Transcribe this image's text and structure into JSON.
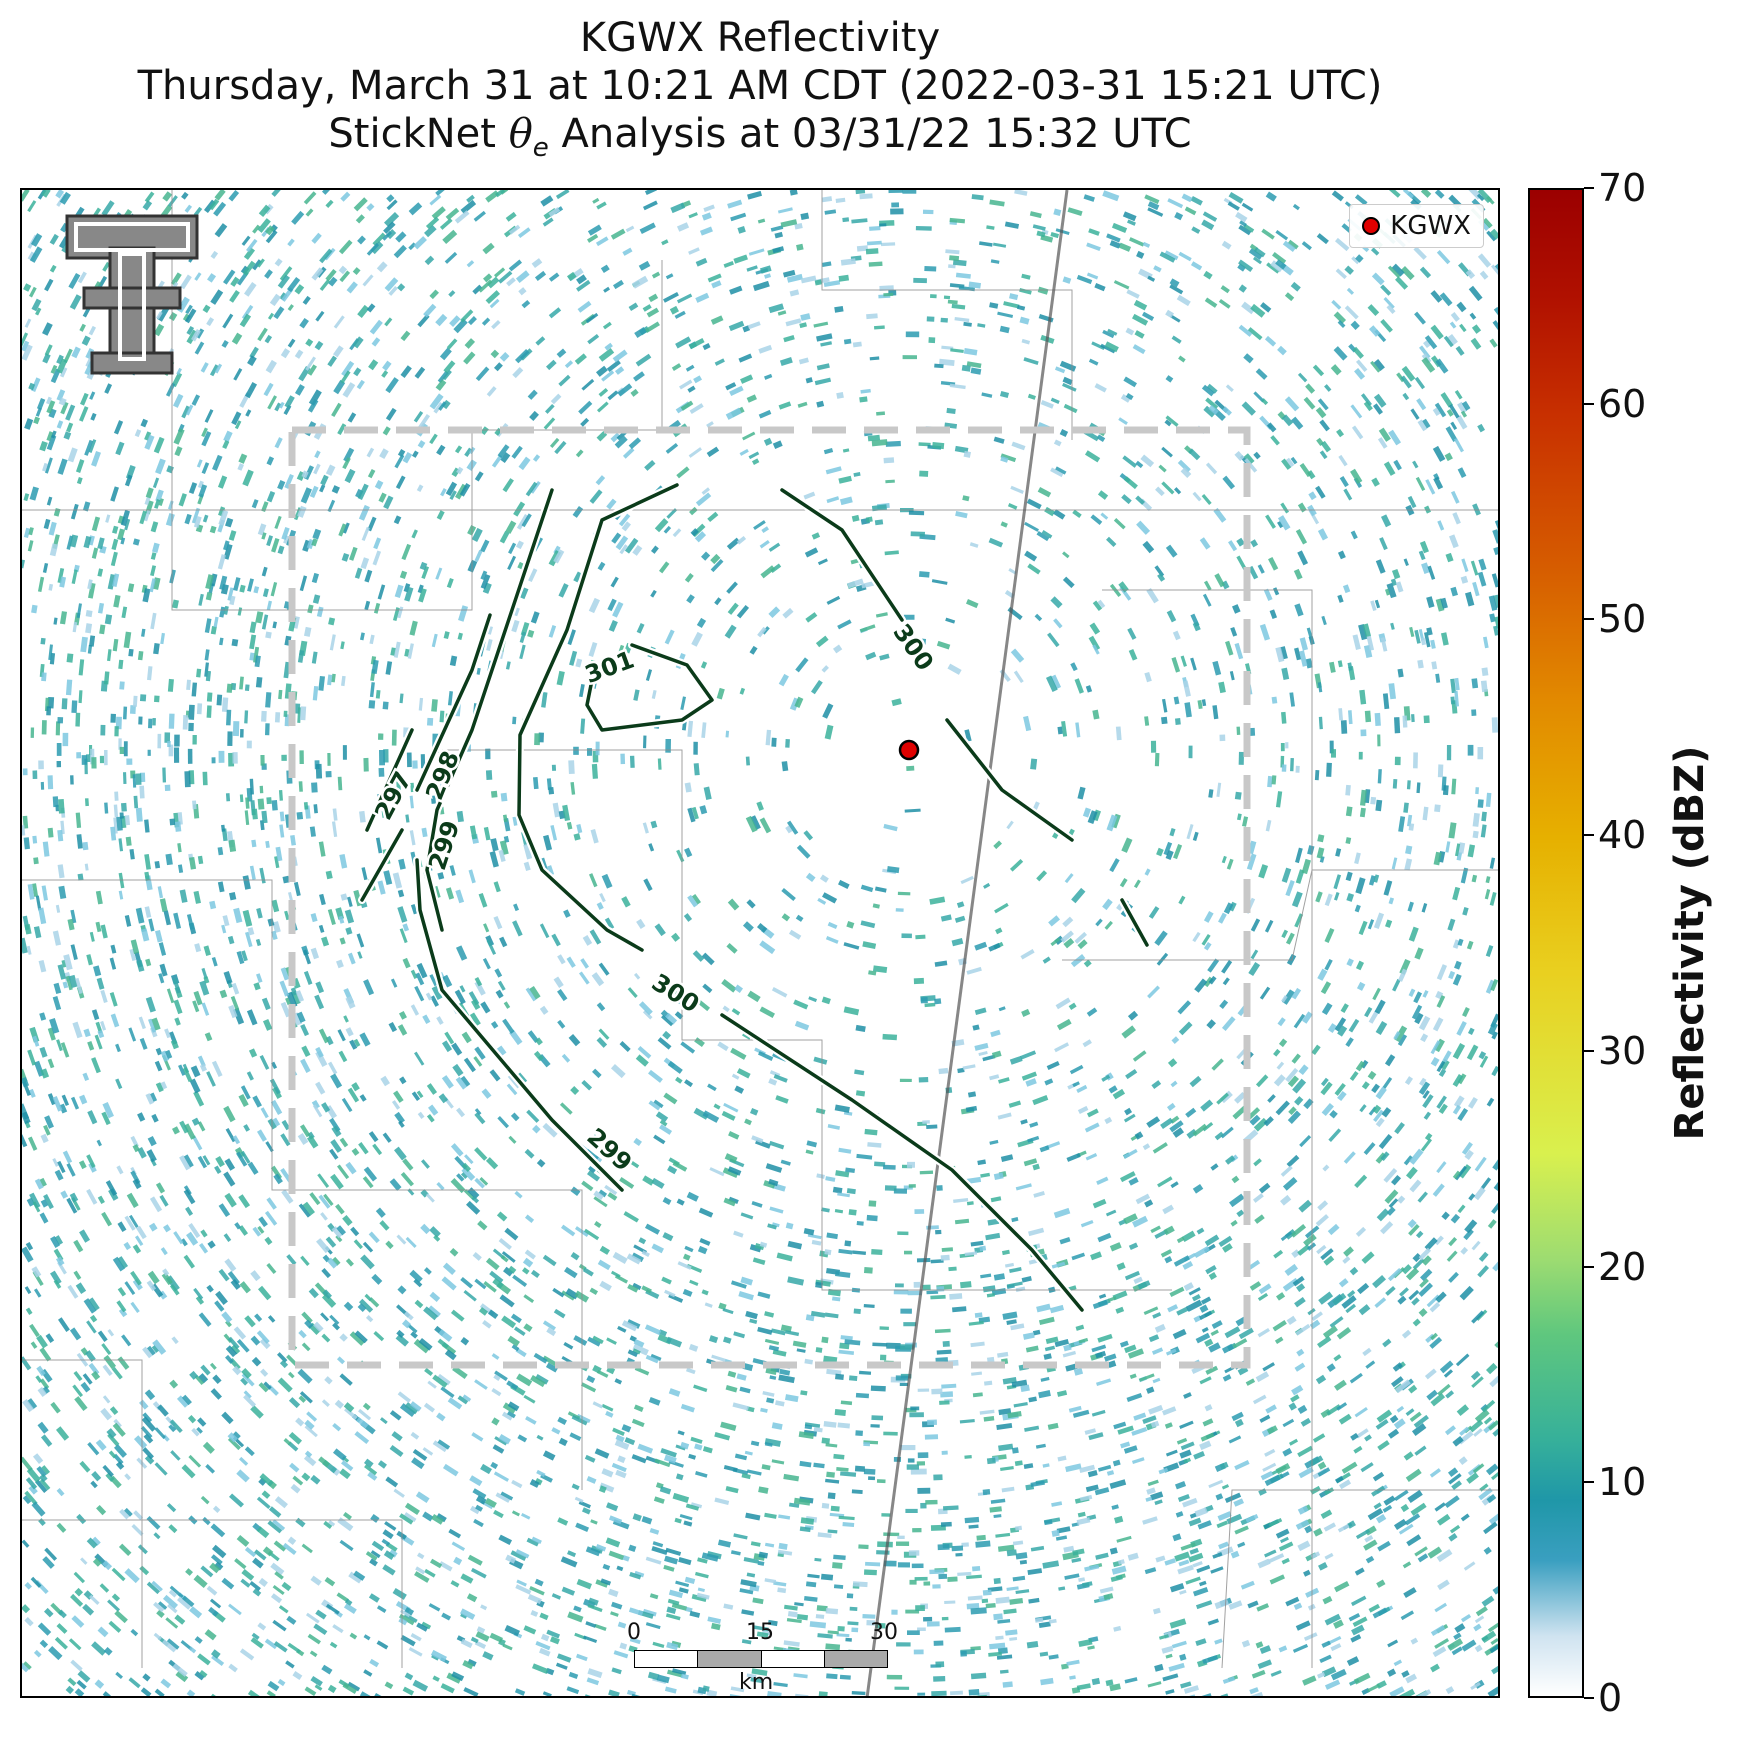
{
  "title": {
    "line1": "KGWX Reflectivity",
    "line2": "Thursday, March 31 at 10:21 AM CDT (2022-03-31 15:21 UTC)",
    "line3_pre": "StickNet ",
    "line3_theta": "θ",
    "line3_sub": "e",
    "line3_post": " Analysis at 03/31/22 15:32 UTC"
  },
  "legend": {
    "radar_label": "KGWX",
    "marker_color": "#e00000"
  },
  "contours": {
    "labels": [
      "297",
      "298",
      "299",
      "301",
      "300",
      "300",
      "299"
    ],
    "color": "#0b3b1a"
  },
  "scalebar": {
    "ticks": [
      "0",
      "15",
      "30"
    ],
    "unit": "km"
  },
  "colorbar": {
    "title": "Reflectivity (dBZ)",
    "ticks": [
      "0",
      "10",
      "20",
      "30",
      "40",
      "50",
      "60",
      "70"
    ],
    "min": 0,
    "max": 70
  },
  "colors": {
    "echo_dominant": "#2b9bb0",
    "contour": "#0b3b1a",
    "analysis_box": "#c8c8c8"
  }
}
